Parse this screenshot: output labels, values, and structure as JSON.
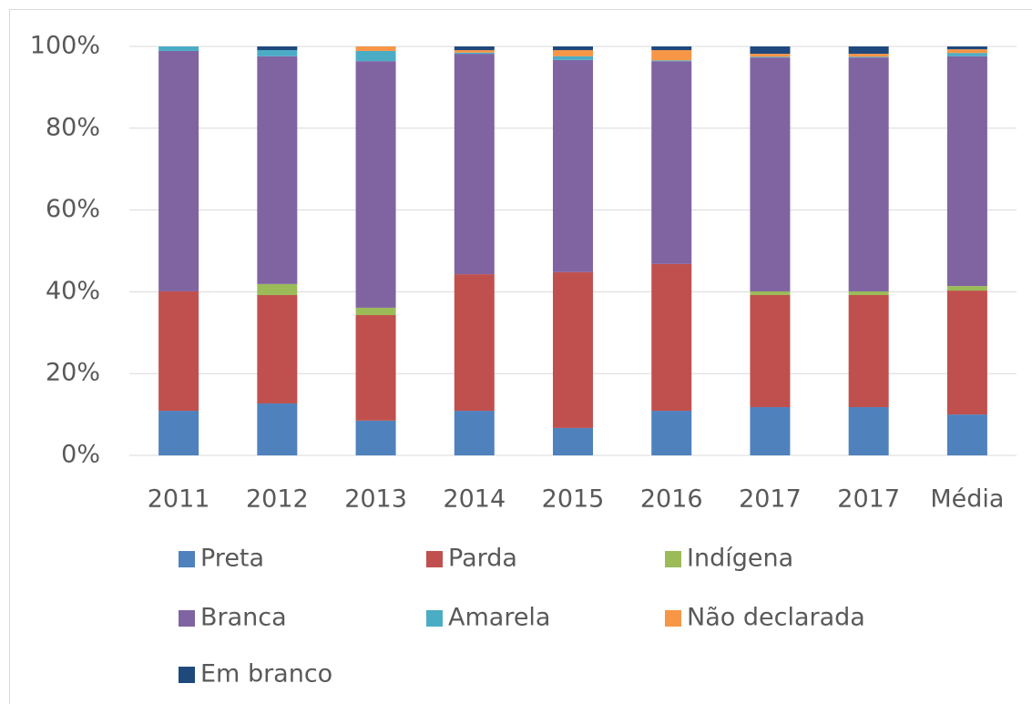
{
  "chart_data": {
    "type": "stacked_bar",
    "categories": [
      "2011",
      "2012",
      "2013",
      "2014",
      "2015",
      "2016",
      "2017",
      "2017",
      "Média"
    ],
    "series": [
      {
        "name": "Preta",
        "color": "#4f81bd",
        "values": [
          10.9,
          12.7,
          8.5,
          10.9,
          6.7,
          10.9,
          11.8,
          11.8,
          10.0
        ]
      },
      {
        "name": "Parda",
        "color": "#c0504d",
        "values": [
          29.2,
          26.5,
          25.8,
          33.4,
          38.1,
          35.9,
          27.4,
          27.4,
          30.3
        ]
      },
      {
        "name": "Indígena",
        "color": "#9bbb59",
        "values": [
          0,
          2.7,
          1.8,
          0,
          0,
          0,
          0.9,
          0.9,
          1.1
        ]
      },
      {
        "name": "Branca",
        "color": "#8064a2",
        "values": [
          58.8,
          55.7,
          60.3,
          53.9,
          51.9,
          49.6,
          57.2,
          57.2,
          56.2
        ]
      },
      {
        "name": "Amarela",
        "color": "#4bacc6",
        "values": [
          1.1,
          1.5,
          2.5,
          0.3,
          0.9,
          0.2,
          0.2,
          0.2,
          0.8
        ]
      },
      {
        "name": "Não declarada",
        "color": "#f79646",
        "values": [
          0,
          0,
          1.1,
          0.6,
          1.5,
          2.5,
          0.7,
          0.7,
          0.9
        ]
      },
      {
        "name": "Em branco",
        "color": "#1f497d",
        "values": [
          0,
          0.9,
          0,
          0.9,
          0.9,
          0.9,
          1.8,
          1.8,
          0.7
        ]
      }
    ],
    "ylim": [
      0,
      100
    ],
    "yticks": [
      {
        "value": 0,
        "label": "0%"
      },
      {
        "value": 20,
        "label": "20%"
      },
      {
        "value": 40,
        "label": "40%"
      },
      {
        "value": 60,
        "label": "60%"
      },
      {
        "value": 80,
        "label": "80%"
      },
      {
        "value": 100,
        "label": "100%"
      }
    ],
    "grid": true,
    "legend": "bottom"
  }
}
